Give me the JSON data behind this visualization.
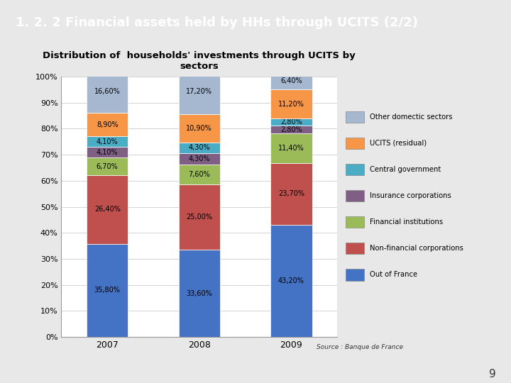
{
  "title": "Distribution of  households' investments through UCITS by\nsectors",
  "header_title": "1. 2. 2 Financial assets held by HHs through UCITS (2/2)",
  "source": "Source : Banque de France",
  "years": [
    "2007",
    "2008",
    "2009"
  ],
  "categories": [
    "Out of France",
    "Non-financial corporations",
    "Financial institutions",
    "Insurance corporations",
    "Central government",
    "UCITS (residual)",
    "Other domectic sectors"
  ],
  "colors": [
    "#4472C4",
    "#C0504D",
    "#9BBB59",
    "#7F6084",
    "#4BACC6",
    "#F79646",
    "#A5B8D0"
  ],
  "values": {
    "2007": [
      35.8,
      26.4,
      6.7,
      4.1,
      4.1,
      8.9,
      16.6
    ],
    "2008": [
      33.6,
      25.0,
      7.6,
      4.3,
      4.3,
      10.9,
      17.2
    ],
    "2009": [
      43.2,
      23.7,
      11.4,
      2.8,
      2.8,
      11.2,
      6.4
    ]
  },
  "labels": {
    "2007": [
      "35,80%",
      "26,40%",
      "6,70%",
      "4,10%",
      "4,10%",
      "8,90%",
      "16,60%"
    ],
    "2008": [
      "33,60%",
      "25,00%",
      "7,60%",
      "4,30%",
      "4,30%",
      "10,90%",
      "17,20%"
    ],
    "2009": [
      "43,20%",
      "23,70%",
      "11,40%",
      "2,80%",
      "2,80%",
      "11,20%",
      "6,40%"
    ]
  },
  "header_bg": "#314D6E",
  "header_text_color": "#FFFFFF",
  "page_bg": "#E8E8E8",
  "chart_bg": "#FFFFFF",
  "page_number": "9",
  "bar_width": 0.45
}
